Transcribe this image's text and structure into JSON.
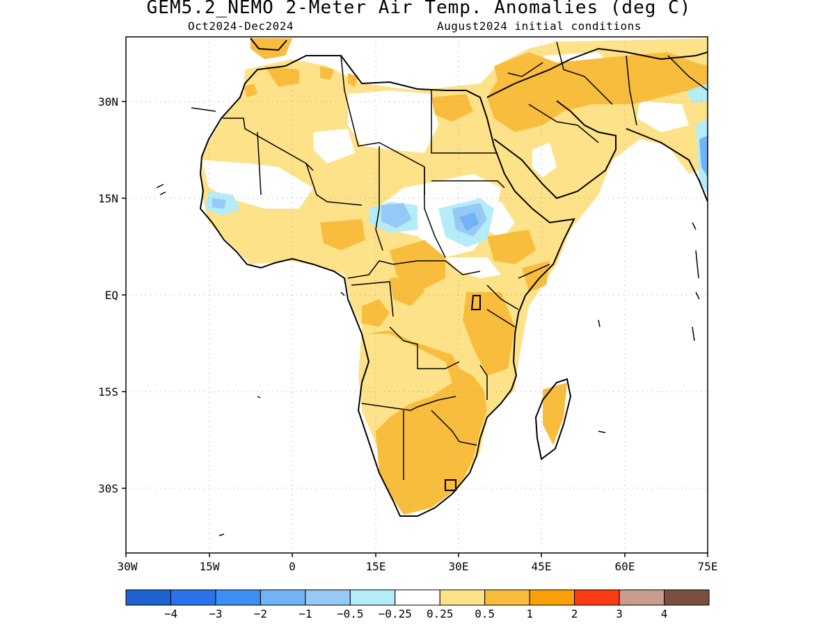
{
  "title": "GEM5.2_NEMO 2-Meter Air Temp. Anomalies (deg C)",
  "subtitle_left": "Oct2024-Dec2024",
  "subtitle_right": "August2024 initial conditions",
  "map": {
    "region": "Africa and Middle East",
    "lon_range": [
      -30,
      75
    ],
    "lat_range": [
      -40,
      40
    ],
    "x_tick_labels": [
      "30W",
      "15W",
      "0",
      "15E",
      "30E",
      "45E",
      "60E",
      "75E"
    ],
    "y_tick_labels": [
      "30N",
      "15N",
      "EQ",
      "15S",
      "30S"
    ],
    "grid": "dotted"
  },
  "colorbar": {
    "colors": [
      "#1f62d0",
      "#2b72ea",
      "#3c8ff0",
      "#72b3f5",
      "#96c9f5",
      "#b4ecf8",
      "#ffffff",
      "#fde28a",
      "#f9bd3e",
      "#f9a009",
      "#fb3b13",
      "#c99c8e",
      "#7a4f42"
    ],
    "labels": [
      "−4",
      "−3",
      "−2",
      "−1",
      "−0.5",
      "−0.25",
      "0.25",
      "0.5",
      "1",
      "2",
      "3",
      "4"
    ]
  }
}
